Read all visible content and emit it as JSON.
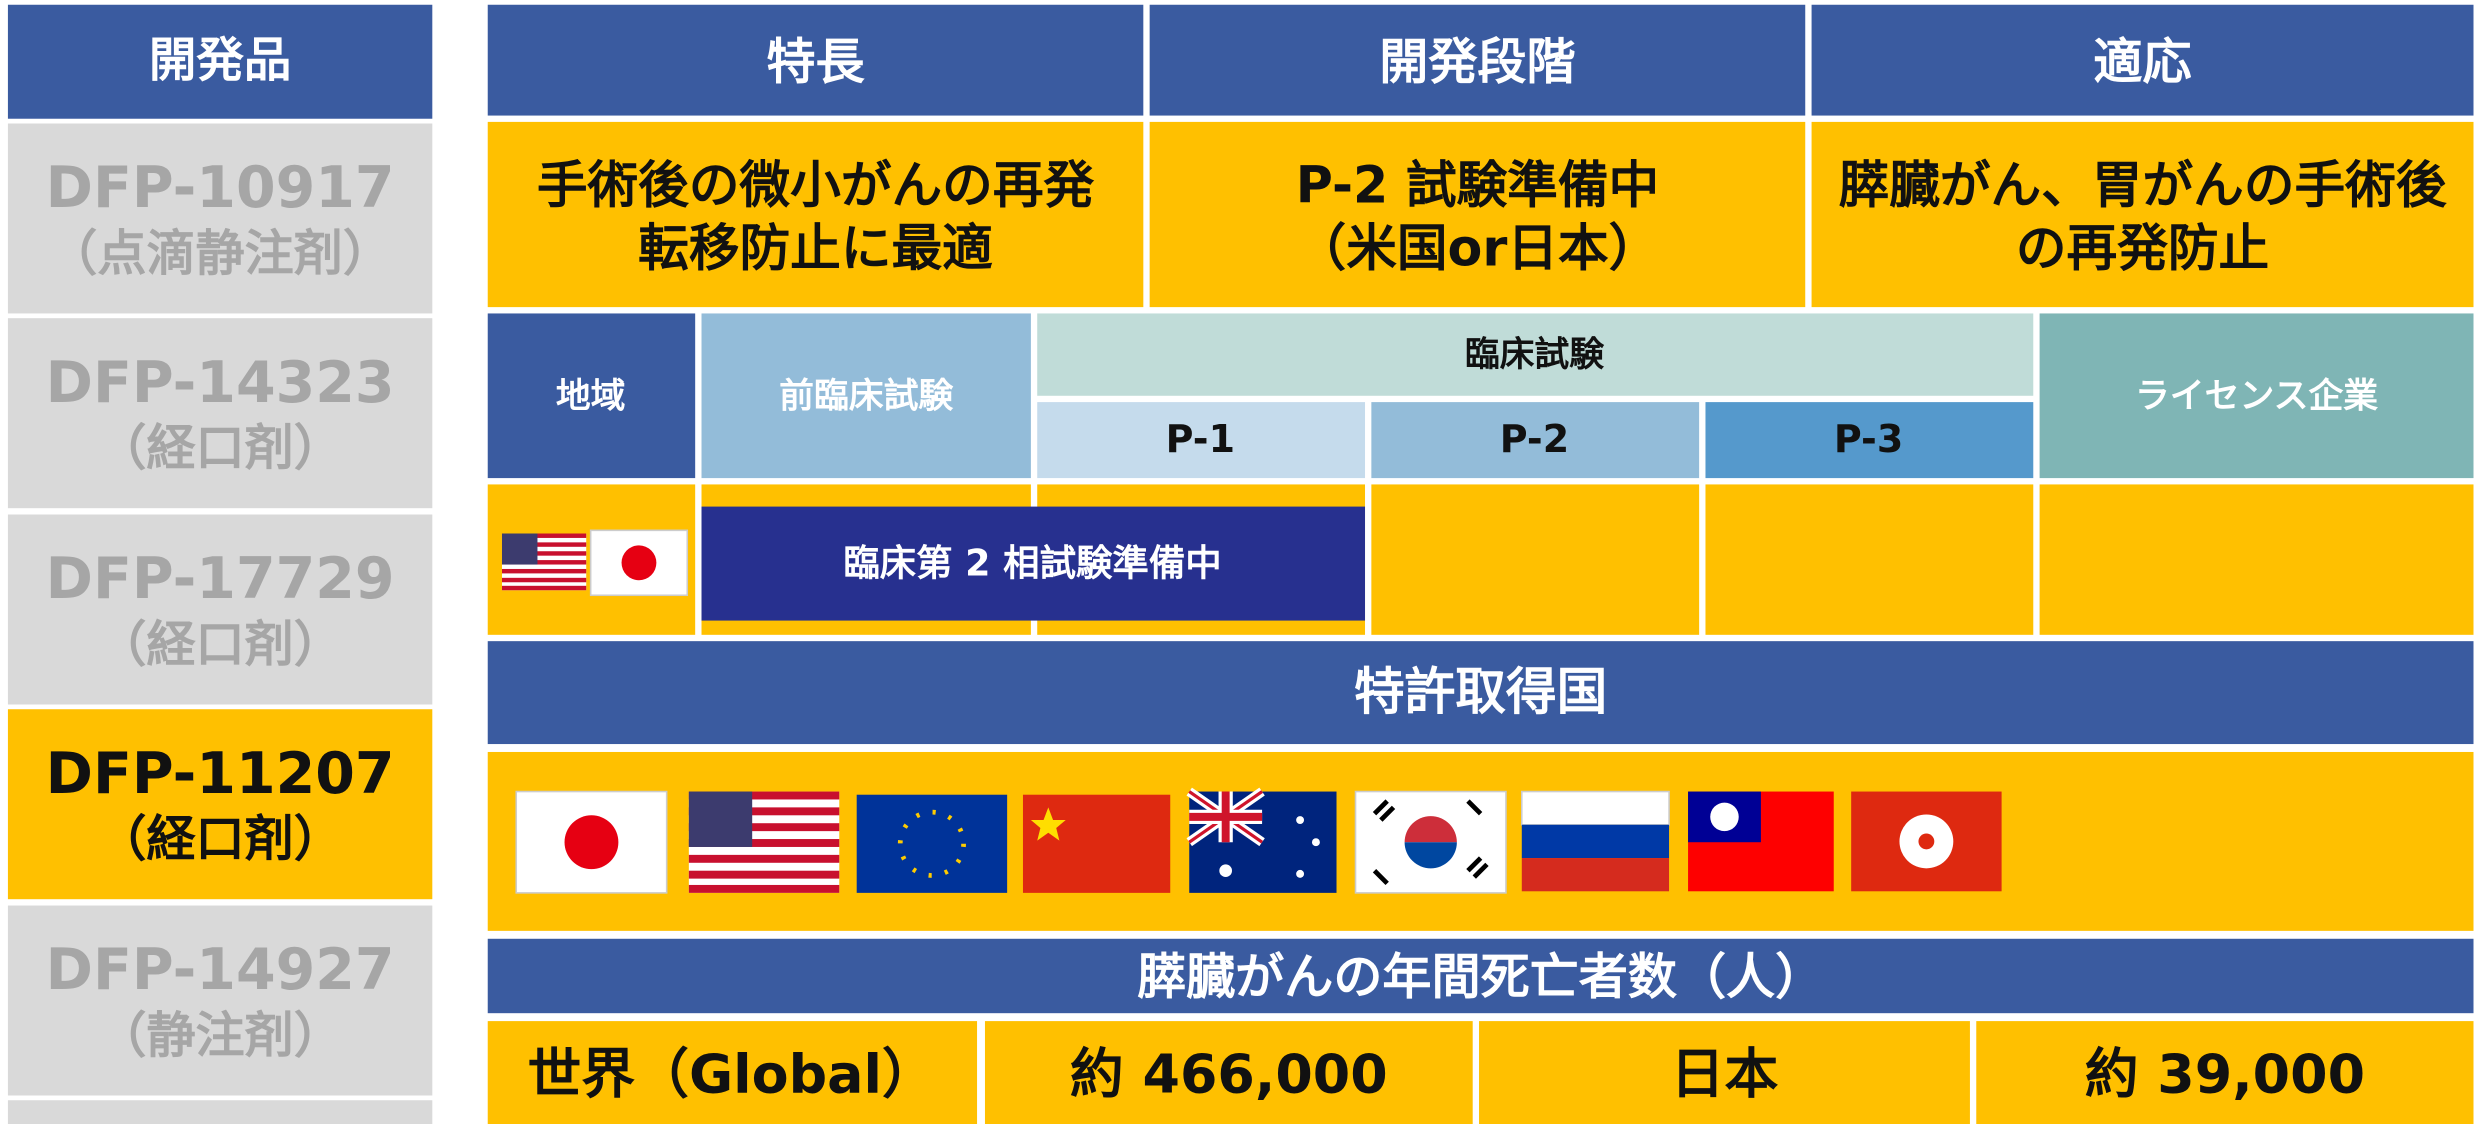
{
  "sidebar": {
    "header": "開発品",
    "highlighted": 3,
    "items": [
      {
        "name": "DFP-10917",
        "form": "（点滴静注剤）"
      },
      {
        "name": "DFP-14323",
        "form": "（経口剤）"
      },
      {
        "name": "DFP-17729",
        "form": "（経口剤）"
      },
      {
        "name": "DFP-11207",
        "form": "（経口剤）"
      },
      {
        "name": "DFP-14927",
        "form": "（静注剤）"
      }
    ]
  },
  "header": [
    "特長",
    "開発段階",
    "適応"
  ],
  "summary": [
    [
      "手術後の微小がんの再発",
      "転移防止に最適"
    ],
    [
      "P-2 試験準備中",
      "（米国or日本）"
    ],
    [
      "膵臓がん、胃がんの手術後",
      "の再発防止"
    ]
  ],
  "stages": {
    "region": "地域",
    "preclinical": "前臨床試験",
    "clinical": "臨床試験",
    "phases": [
      "P-1",
      "P-2",
      "P-3"
    ],
    "licensee": "ライセンス企業",
    "status": "臨床第 2 相試験準備中"
  },
  "patents_title": "特許取得国",
  "mortality": {
    "title": "膵臓がんの年間死亡者数（人）",
    "cells": [
      "世界（Global）",
      "約 466,000",
      "日本",
      "約 39,000"
    ]
  }
}
